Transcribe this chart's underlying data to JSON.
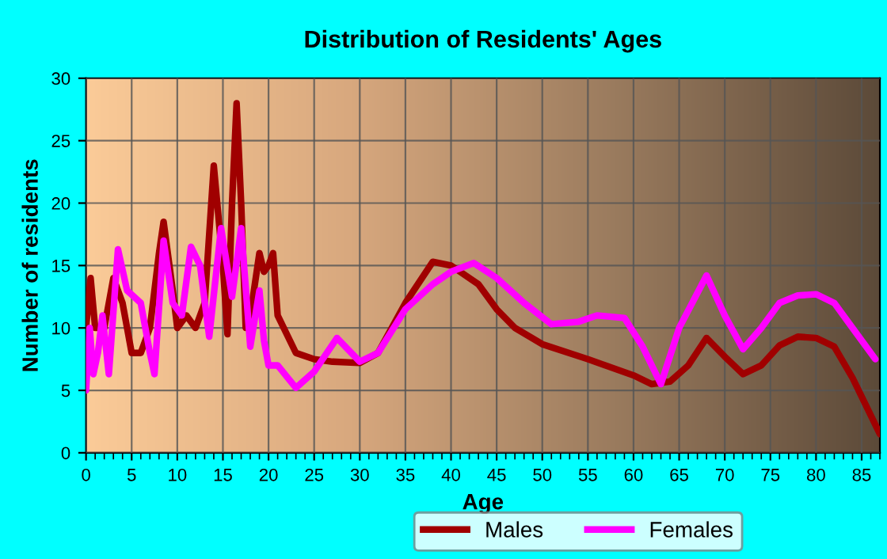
{
  "chart_data": {
    "type": "line",
    "title": "Distribution of Residents' Ages",
    "xlabel": "Age",
    "ylabel": "Number of residents",
    "xlim": [
      0,
      87
    ],
    "xticks": [
      0,
      5,
      10,
      15,
      20,
      25,
      30,
      35,
      40,
      45,
      50,
      55,
      60,
      65,
      70,
      75,
      80,
      85
    ],
    "ylim": [
      0,
      30
    ],
    "yticks": [
      0,
      5,
      10,
      15,
      20,
      25,
      30
    ],
    "grid": true,
    "legend": "bottom",
    "marker": "none",
    "line_style": "solid",
    "series": [
      {
        "name": "Males",
        "color": "#a00000",
        "x": [
          0,
          0.5,
          1,
          2,
          3,
          4,
          5,
          6,
          7,
          8,
          8.5,
          9.5,
          10,
          11,
          12,
          13,
          14,
          15,
          15.5,
          16,
          16.5,
          17,
          17.5,
          18,
          19,
          19.5,
          20,
          20.5,
          21,
          23,
          25,
          27,
          30,
          32,
          35,
          38,
          40,
          43,
          45,
          47,
          50,
          55,
          60,
          62,
          64,
          66,
          68,
          70,
          72,
          74,
          76,
          78,
          80,
          82,
          84,
          87
        ],
        "values": [
          10,
          14,
          10,
          10,
          14,
          12,
          8,
          8,
          10,
          16,
          18.5,
          13,
          10,
          11,
          10,
          12,
          23,
          15,
          9.5,
          20,
          28,
          20,
          10,
          11,
          16,
          14.5,
          15,
          16,
          11,
          8,
          7.5,
          7.3,
          7.2,
          8,
          12,
          15.3,
          15,
          13.5,
          11.5,
          10,
          8.7,
          7.5,
          6.2,
          5.5,
          5.7,
          7,
          9.2,
          7.7,
          6.3,
          7,
          8.6,
          9.3,
          9.2,
          8.5,
          6,
          1.5
        ]
      },
      {
        "name": "Females",
        "color": "#ff00ff",
        "x": [
          0,
          0.4,
          0.8,
          1.3,
          1.8,
          2.5,
          3.5,
          4.5,
          6,
          7,
          7.5,
          8.5,
          9.5,
          10.5,
          11.5,
          12.5,
          13.5,
          14.8,
          16,
          17,
          18,
          19,
          19.5,
          20,
          21,
          23,
          25,
          27.5,
          30,
          32,
          35,
          38,
          40,
          42.5,
          45,
          48,
          51,
          54,
          56,
          59,
          61,
          63,
          65,
          68,
          70,
          72,
          74,
          76,
          78,
          80,
          82,
          84,
          86.5
        ],
        "values": [
          5,
          10,
          6.3,
          8,
          11,
          6.3,
          16.3,
          13,
          12,
          8,
          6.3,
          17,
          12,
          11,
          16.5,
          15,
          9.3,
          18,
          12.5,
          18,
          8.5,
          13,
          9,
          7,
          7,
          5.2,
          6.5,
          9.2,
          7.3,
          8,
          11.5,
          13.5,
          14.5,
          15.2,
          14,
          12,
          10.3,
          10.5,
          11,
          10.8,
          8.5,
          5.5,
          10,
          14.2,
          11,
          8.3,
          10,
          12,
          12.6,
          12.7,
          12,
          10,
          7.5
        ]
      }
    ]
  }
}
